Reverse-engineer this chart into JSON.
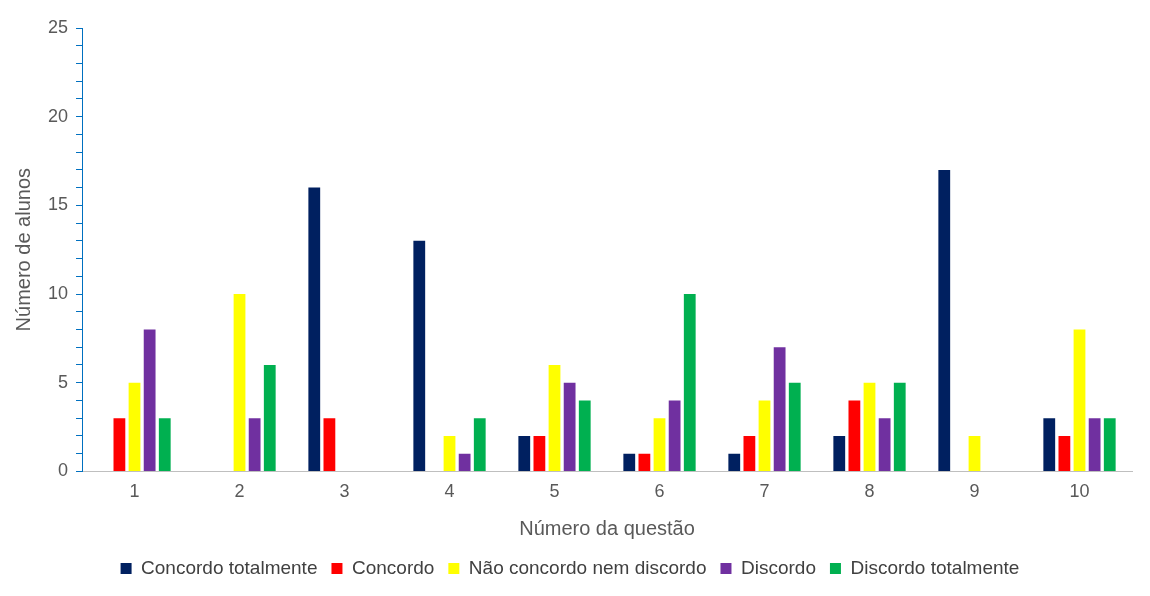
{
  "chart_data": {
    "type": "bar",
    "xlabel": "Número da questão",
    "ylabel": "Número de alunos",
    "categories": [
      "1",
      "2",
      "3",
      "4",
      "5",
      "6",
      "7",
      "8",
      "9",
      "10"
    ],
    "series": [
      {
        "name": "Concordo totalmente",
        "color": "#002060",
        "values": [
          0,
          0,
          16,
          13,
          2,
          1,
          1,
          2,
          17,
          3
        ]
      },
      {
        "name": "Concordo",
        "color": "#ff0000",
        "values": [
          3,
          0,
          3,
          0,
          2,
          1,
          2,
          4,
          0,
          2
        ]
      },
      {
        "name": "Não concordo nem discordo",
        "color": "#ffff00",
        "values": [
          5,
          10,
          0,
          2,
          6,
          3,
          4,
          5,
          2,
          8
        ]
      },
      {
        "name": "Discordo",
        "color": "#7030a0",
        "values": [
          8,
          3,
          0,
          1,
          5,
          4,
          7,
          3,
          0,
          3
        ]
      },
      {
        "name": "Discordo totalmente",
        "color": "#00b050",
        "values": [
          3,
          6,
          0,
          3,
          4,
          10,
          5,
          5,
          0,
          3
        ]
      }
    ],
    "ylim": [
      0,
      25
    ],
    "yticks": [
      0,
      {
        "value": 1,
        "label": null
      },
      {
        "value": 2,
        "label": null
      },
      {
        "value": 3,
        "label": null
      },
      {
        "value": 4,
        "label": null
      },
      5,
      {
        "value": 6,
        "label": null
      },
      {
        "value": 7,
        "label": null
      },
      {
        "value": 8,
        "label": null
      },
      {
        "value": 9,
        "label": null
      },
      10,
      {
        "value": 11,
        "label": null
      },
      {
        "value": 12,
        "label": null
      },
      {
        "value": 13,
        "label": null
      },
      {
        "value": 14,
        "label": null
      },
      15,
      {
        "value": 16,
        "label": null
      },
      {
        "value": 17,
        "label": null
      },
      {
        "value": 18,
        "label": null
      },
      {
        "value": 19,
        "label": null
      },
      20,
      {
        "value": 21,
        "label": null
      },
      {
        "value": 22,
        "label": null
      },
      {
        "value": 23,
        "label": null
      },
      {
        "value": 24,
        "label": null
      },
      25
    ],
    "grid": false,
    "legend": "bottom"
  }
}
